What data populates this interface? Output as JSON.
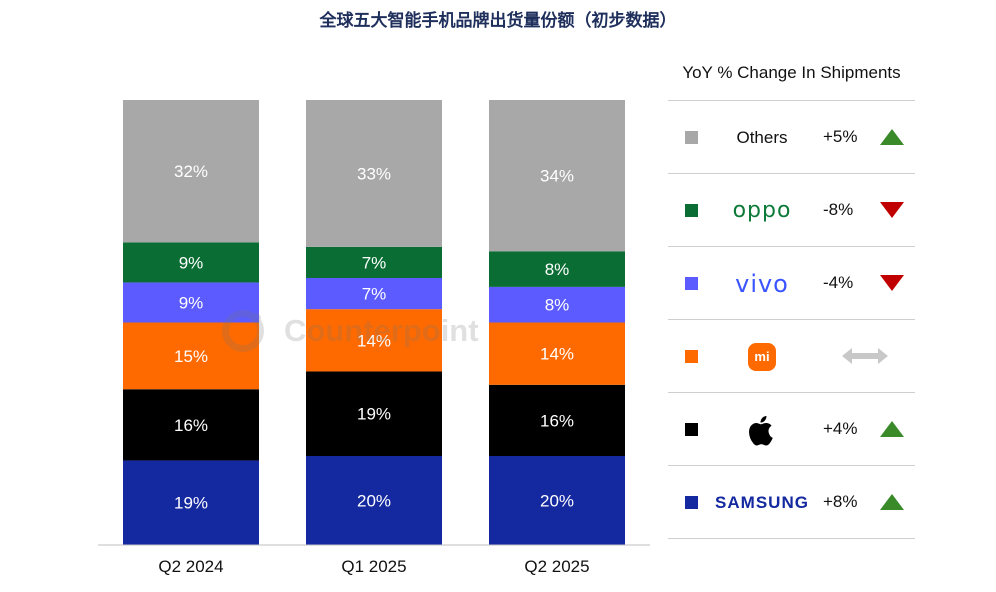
{
  "title": "全球五大智能手机品牌出货量份额（初步数据）",
  "watermark_text": "Counterpoint",
  "chart_data": {
    "type": "bar",
    "stacked": true,
    "categories": [
      "Q2 2024",
      "Q1 2025",
      "Q2 2025"
    ],
    "series": [
      {
        "name": "Samsung",
        "color": "#1428a0",
        "values": [
          19,
          20,
          20
        ],
        "labels": [
          "19%",
          "20%",
          "20%"
        ]
      },
      {
        "name": "Apple",
        "color": "#000000",
        "values": [
          16,
          19,
          16
        ],
        "labels": [
          "16%",
          "19%",
          "16%"
        ]
      },
      {
        "name": "Xiaomi",
        "color": "#ff6a00",
        "values": [
          15,
          14,
          14
        ],
        "labels": [
          "15%",
          "14%",
          "14%"
        ]
      },
      {
        "name": "vivo",
        "color": "#5b5bff",
        "values": [
          9,
          7,
          8
        ],
        "labels": [
          "9%",
          "7%",
          "8%"
        ]
      },
      {
        "name": "OPPO",
        "color": "#0a6e34",
        "values": [
          9,
          7,
          8
        ],
        "labels": [
          "9%",
          "7%",
          "8%"
        ]
      },
      {
        "name": "Others",
        "color": "#a8a8a8",
        "values": [
          32,
          33,
          34
        ],
        "labels": [
          "32%",
          "33%",
          "34%"
        ]
      }
    ],
    "ylim": [
      0,
      100
    ]
  },
  "legend": {
    "header": "YoY % Change In Shipments",
    "rows": [
      {
        "brand": "Others",
        "brand_style": "text",
        "color": "#a8a8a8",
        "change": "+5%",
        "trend": "up"
      },
      {
        "brand": "oppo",
        "brand_style": "oppo",
        "color": "#0a6e34",
        "change": "-8%",
        "trend": "down"
      },
      {
        "brand": "vivo",
        "brand_style": "vivo",
        "color": "#5b5bff",
        "change": "-4%",
        "trend": "down"
      },
      {
        "brand": "mi",
        "brand_style": "mi",
        "color": "#ff6a00",
        "change": "",
        "trend": "flat"
      },
      {
        "brand": "apple-logo-icon",
        "brand_style": "apple",
        "color": "#000000",
        "change": "+4%",
        "trend": "up"
      },
      {
        "brand": "SAMSUNG",
        "brand_style": "samsung",
        "color": "#1428a0",
        "change": "+8%",
        "trend": "up"
      }
    ]
  }
}
